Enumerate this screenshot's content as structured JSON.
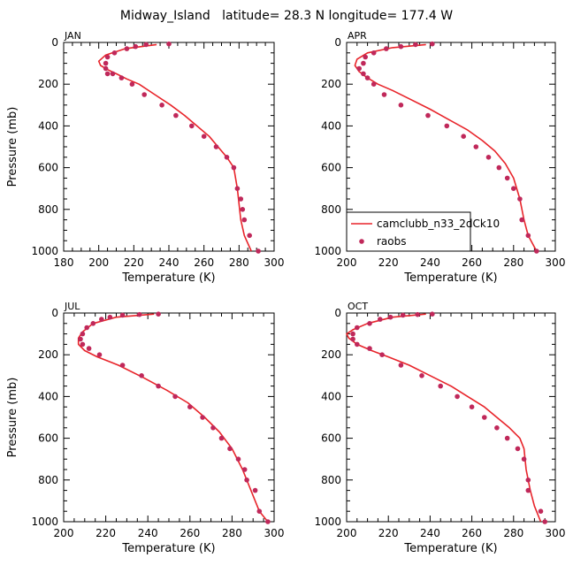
{
  "figure": {
    "title": "Midway_Island   latitude= 28.3 N longitude= 177.4 W"
  },
  "legend": {
    "model_label": "camclubb_n33_2dCk10",
    "obs_label": "raobs",
    "model_color": "#e8242a",
    "obs_color": "#c0285a",
    "placement": "bottom-left of APR panel"
  },
  "chart_data": [
    {
      "type": "line",
      "panel": "JAN",
      "xlabel": "Temperature (K)",
      "ylabel": "Pressure (mb)",
      "xlim": [
        180,
        300
      ],
      "xticks": [
        180,
        200,
        220,
        240,
        260,
        280,
        300
      ],
      "ylim": [
        0,
        1000
      ],
      "yticks": [
        0,
        200,
        400,
        600,
        800,
        1000
      ],
      "y_inverted": true,
      "series": [
        {
          "name": "camclubb_n33_2dCk10",
          "x": [
            233,
            215,
            204,
            200,
            201,
            205,
            210,
            216,
            223,
            232,
            241,
            249,
            256,
            263,
            268,
            273,
            277,
            279,
            281,
            283,
            287
          ],
          "y": [
            10,
            30,
            60,
            90,
            110,
            130,
            150,
            175,
            200,
            250,
            300,
            350,
            400,
            450,
            500,
            550,
            600,
            700,
            850,
            925,
            1000
          ]
        },
        {
          "name": "raobs",
          "x": [
            240,
            227,
            221,
            216,
            209,
            205,
            204,
            204,
            205,
            208,
            213,
            219,
            226,
            236,
            244,
            253,
            260,
            267,
            273,
            277,
            279,
            281,
            282,
            283,
            286,
            291
          ],
          "y": [
            7,
            10,
            20,
            30,
            50,
            70,
            100,
            125,
            150,
            150,
            170,
            200,
            250,
            300,
            350,
            400,
            450,
            500,
            550,
            600,
            700,
            750,
            800,
            850,
            925,
            1000
          ]
        }
      ]
    },
    {
      "type": "line",
      "panel": "APR",
      "xlabel": "Temperature (K)",
      "ylabel": "",
      "xlim": [
        200,
        300
      ],
      "xticks": [
        200,
        220,
        240,
        260,
        280,
        300
      ],
      "ylim": [
        0,
        1000
      ],
      "yticks": [
        0,
        200,
        400,
        600,
        800,
        1000
      ],
      "y_inverted": true,
      "series": [
        {
          "name": "camclubb_n33_2dCk10",
          "x": [
            238,
            222,
            210,
            205,
            204,
            206,
            210,
            215,
            222,
            230,
            240,
            249,
            258,
            265,
            271,
            276,
            280,
            283,
            285,
            287,
            291
          ],
          "y": [
            10,
            25,
            50,
            80,
            110,
            140,
            170,
            200,
            230,
            270,
            320,
            370,
            420,
            470,
            520,
            580,
            650,
            750,
            850,
            925,
            1000
          ]
        },
        {
          "name": "raobs",
          "x": [
            241,
            233,
            226,
            219,
            213,
            209,
            208,
            206,
            208,
            210,
            213,
            218,
            226,
            239,
            248,
            256,
            262,
            268,
            273,
            277,
            280,
            283,
            284,
            287,
            291
          ],
          "y": [
            7,
            10,
            20,
            30,
            50,
            70,
            100,
            125,
            150,
            170,
            200,
            250,
            300,
            350,
            400,
            450,
            500,
            550,
            600,
            650,
            700,
            750,
            850,
            925,
            1000
          ]
        }
      ]
    },
    {
      "type": "line",
      "panel": "JUL",
      "xlabel": "Temperature (K)",
      "ylabel": "Pressure (mb)",
      "xlim": [
        200,
        300
      ],
      "xticks": [
        200,
        220,
        240,
        260,
        280,
        300
      ],
      "ylim": [
        0,
        1000
      ],
      "yticks": [
        0,
        200,
        400,
        600,
        800,
        1000
      ],
      "y_inverted": true,
      "series": [
        {
          "name": "camclubb_n33_2dCk10",
          "x": [
            243,
            225,
            214,
            209,
            207,
            207,
            210,
            216,
            226,
            238,
            249,
            259,
            267,
            274,
            280,
            285,
            289,
            293,
            297
          ],
          "y": [
            5,
            20,
            50,
            90,
            120,
            150,
            180,
            210,
            250,
            310,
            370,
            430,
            500,
            570,
            650,
            750,
            850,
            950,
            1000
          ]
        },
        {
          "name": "raobs",
          "x": [
            245,
            236,
            228,
            222,
            218,
            214,
            211,
            209,
            208,
            209,
            212,
            217,
            228,
            237,
            245,
            253,
            260,
            266,
            271,
            275,
            279,
            283,
            286,
            287,
            291,
            293,
            297
          ],
          "y": [
            5,
            7,
            10,
            20,
            30,
            50,
            70,
            100,
            125,
            150,
            170,
            200,
            250,
            300,
            350,
            400,
            450,
            500,
            550,
            600,
            650,
            700,
            750,
            800,
            850,
            950,
            1000
          ]
        }
      ]
    },
    {
      "type": "line",
      "panel": "OCT",
      "xlabel": "Temperature (K)",
      "ylabel": "",
      "xlim": [
        200,
        300
      ],
      "xticks": [
        200,
        220,
        240,
        260,
        280,
        300
      ],
      "ylim": [
        0,
        1000
      ],
      "yticks": [
        0,
        200,
        400,
        600,
        800,
        1000
      ],
      "y_inverted": true,
      "series": [
        {
          "name": "camclubb_n33_2dCk10",
          "x": [
            238,
            222,
            210,
            203,
            200,
            201,
            205,
            212,
            220,
            230,
            240,
            250,
            258,
            266,
            272,
            278,
            283,
            285,
            286,
            288,
            290,
            293
          ],
          "y": [
            5,
            20,
            50,
            80,
            100,
            120,
            150,
            180,
            210,
            250,
            300,
            350,
            400,
            450,
            500,
            550,
            600,
            650,
            750,
            850,
            925,
            1000
          ]
        },
        {
          "name": "raobs",
          "x": [
            241,
            234,
            227,
            221,
            216,
            211,
            205,
            203,
            203,
            205,
            211,
            217,
            226,
            236,
            245,
            253,
            260,
            266,
            272,
            277,
            282,
            285,
            287,
            287,
            293,
            295
          ],
          "y": [
            5,
            7,
            10,
            20,
            30,
            50,
            70,
            100,
            125,
            150,
            170,
            200,
            250,
            300,
            350,
            400,
            450,
            500,
            550,
            600,
            650,
            700,
            800,
            850,
            950,
            1000
          ]
        }
      ]
    }
  ]
}
